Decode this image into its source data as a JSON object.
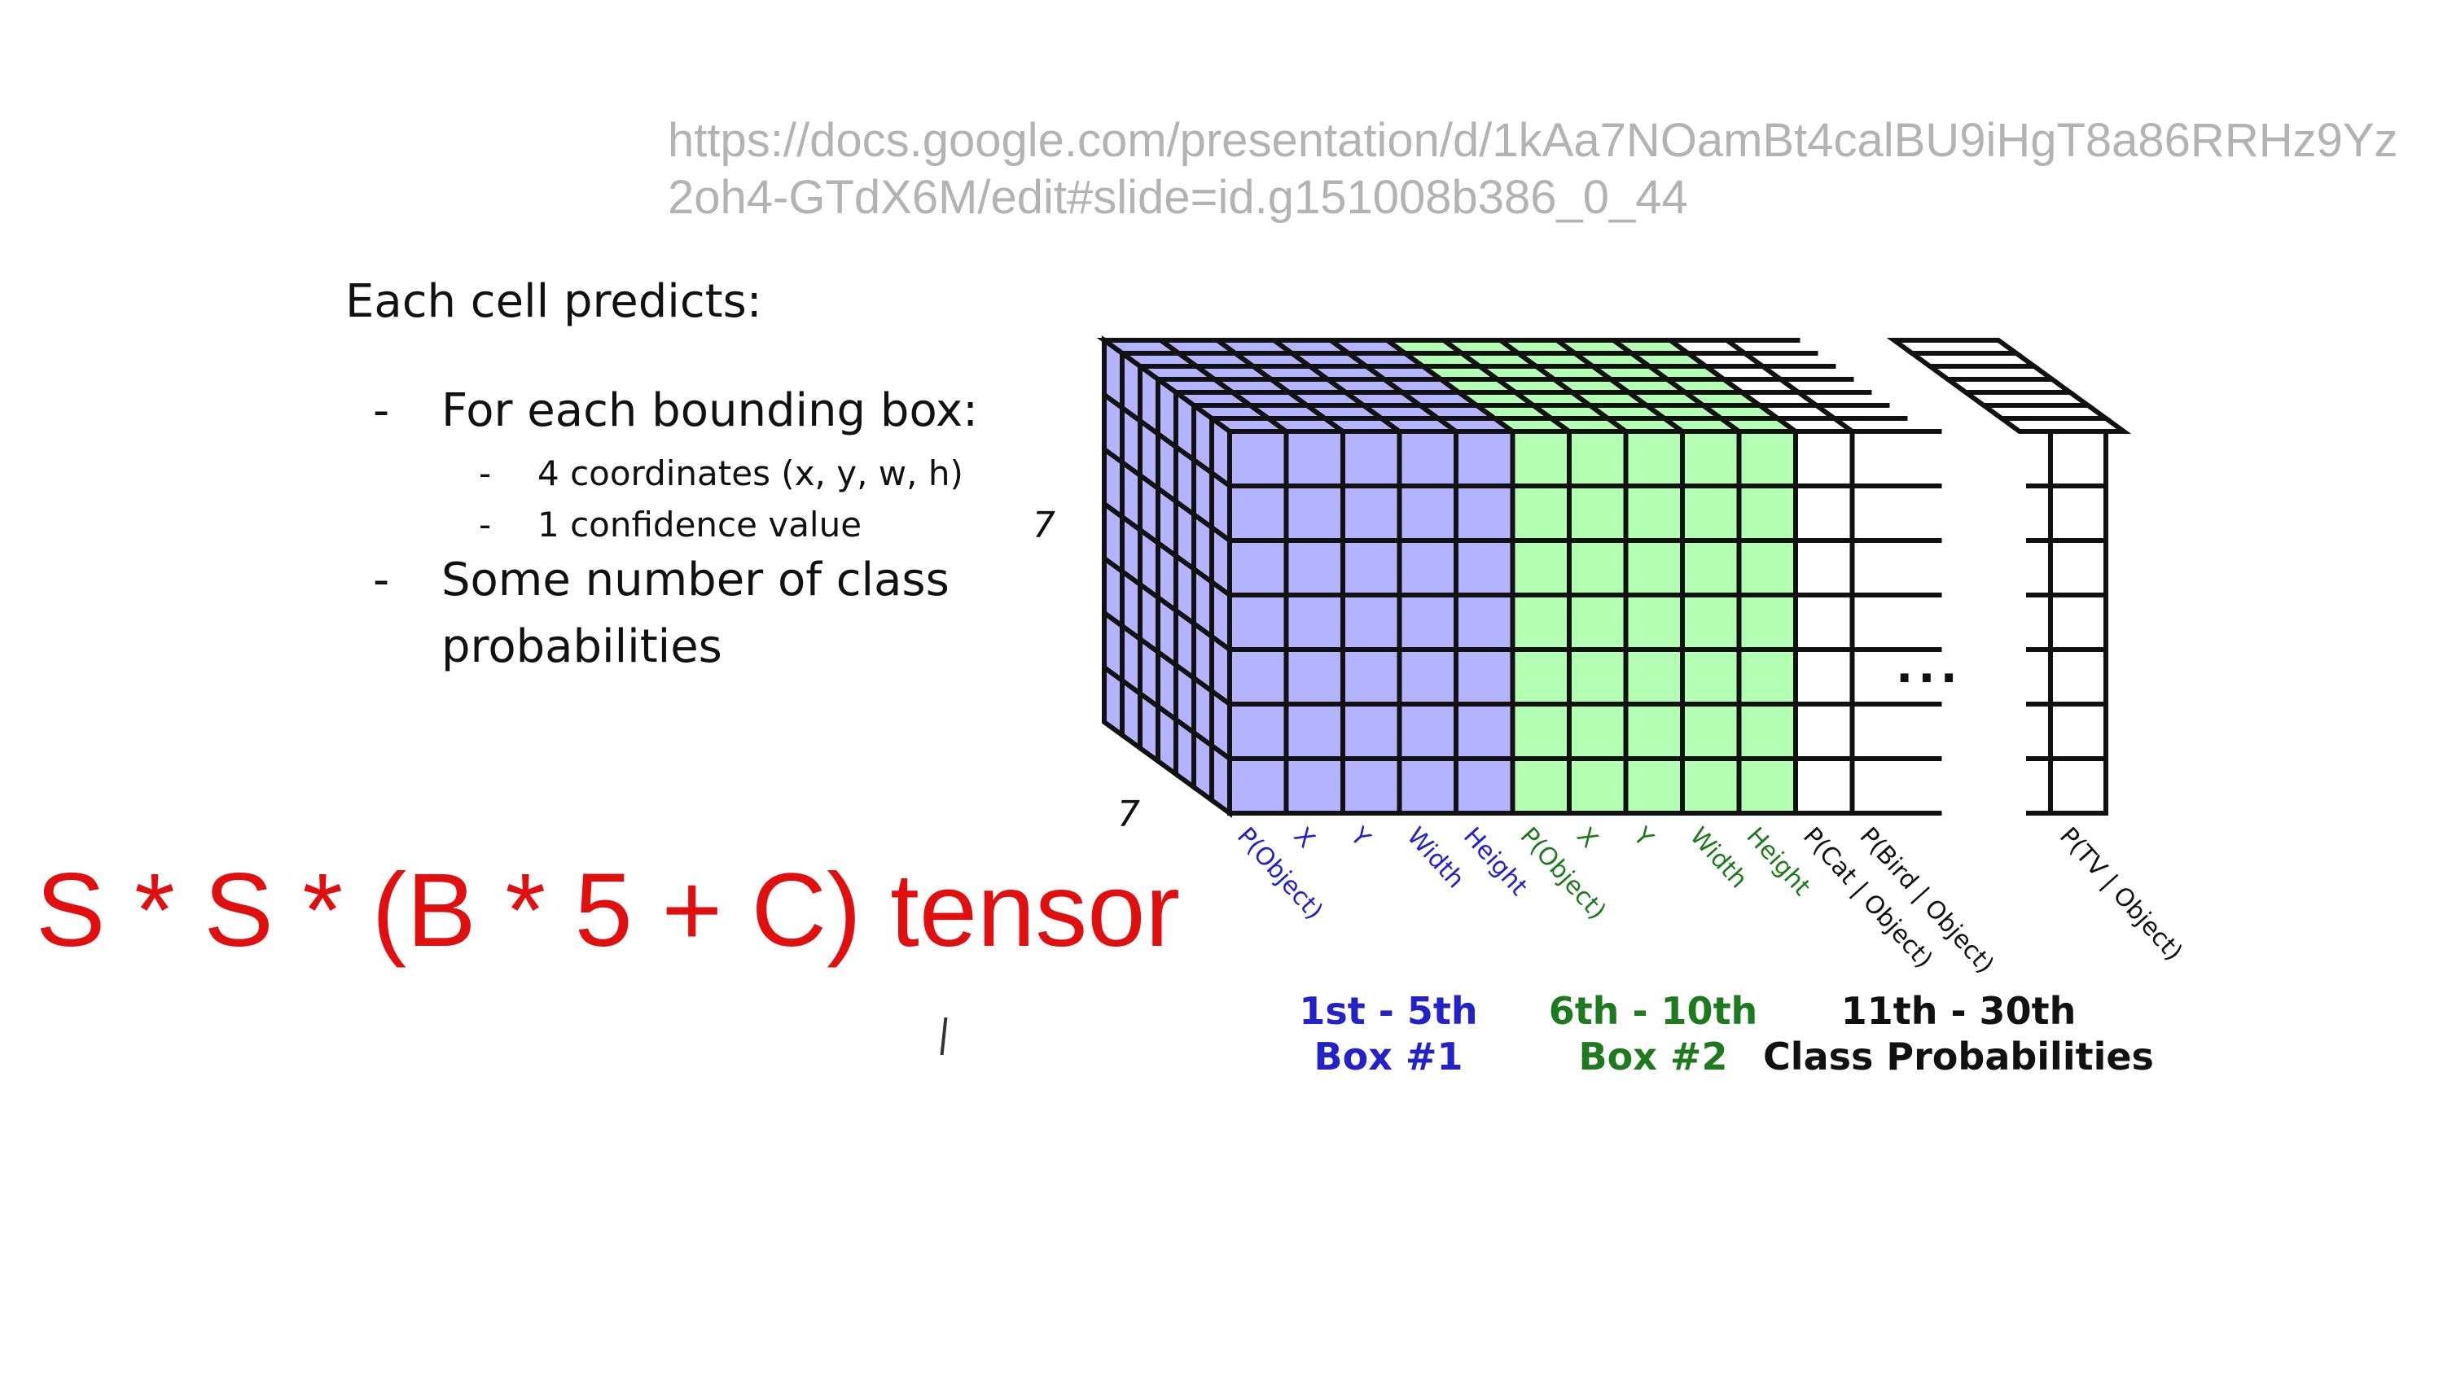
{
  "url": {
    "line1": "https://docs.google.com/presentation/d/1kAa7NOamBt4calBU9iHgT8a86RRHz9Yz",
    "line2": "2oh4-GTdX6M/edit#slide=id.g151008b386_0_44"
  },
  "slide": {
    "heading": "Each cell predicts:",
    "bullets": [
      {
        "dash": "-",
        "text": "For each bounding box:"
      },
      {
        "dash": "-",
        "text": "Some number of class"
      },
      {
        "dash": "",
        "text": "probabilities"
      }
    ],
    "subbullets": [
      {
        "dash": "-",
        "text": "4 coordinates (x, y, w, h)"
      },
      {
        "dash": "-",
        "text": "1 confidence value"
      }
    ]
  },
  "formula": "S * S * (B * 5 + C) tensor",
  "diagram": {
    "dim_height": "7",
    "dim_depth": "7",
    "ellipsis": "...",
    "colors": {
      "box1": "#b3b3ff",
      "box2": "#b3ffb3",
      "stroke": "#111111",
      "blue_text": "#2222c8",
      "green_text": "#1f7a1f"
    },
    "column_labels_box1": [
      "P(Object)",
      "X",
      "Y",
      "Width",
      "Height"
    ],
    "column_labels_box2": [
      "P(Object)",
      "X",
      "Y",
      "Width",
      "Height"
    ],
    "column_labels_class": [
      "P(Cat | Object)",
      "P(Bird | Object)",
      "P(TV | Object)"
    ],
    "groups": [
      {
        "range": "1st - 5th",
        "name": "Box #1"
      },
      {
        "range": "6th - 10th",
        "name": "Box #2"
      },
      {
        "range": "11th - 30th",
        "name": "Class Probabilities"
      }
    ]
  }
}
